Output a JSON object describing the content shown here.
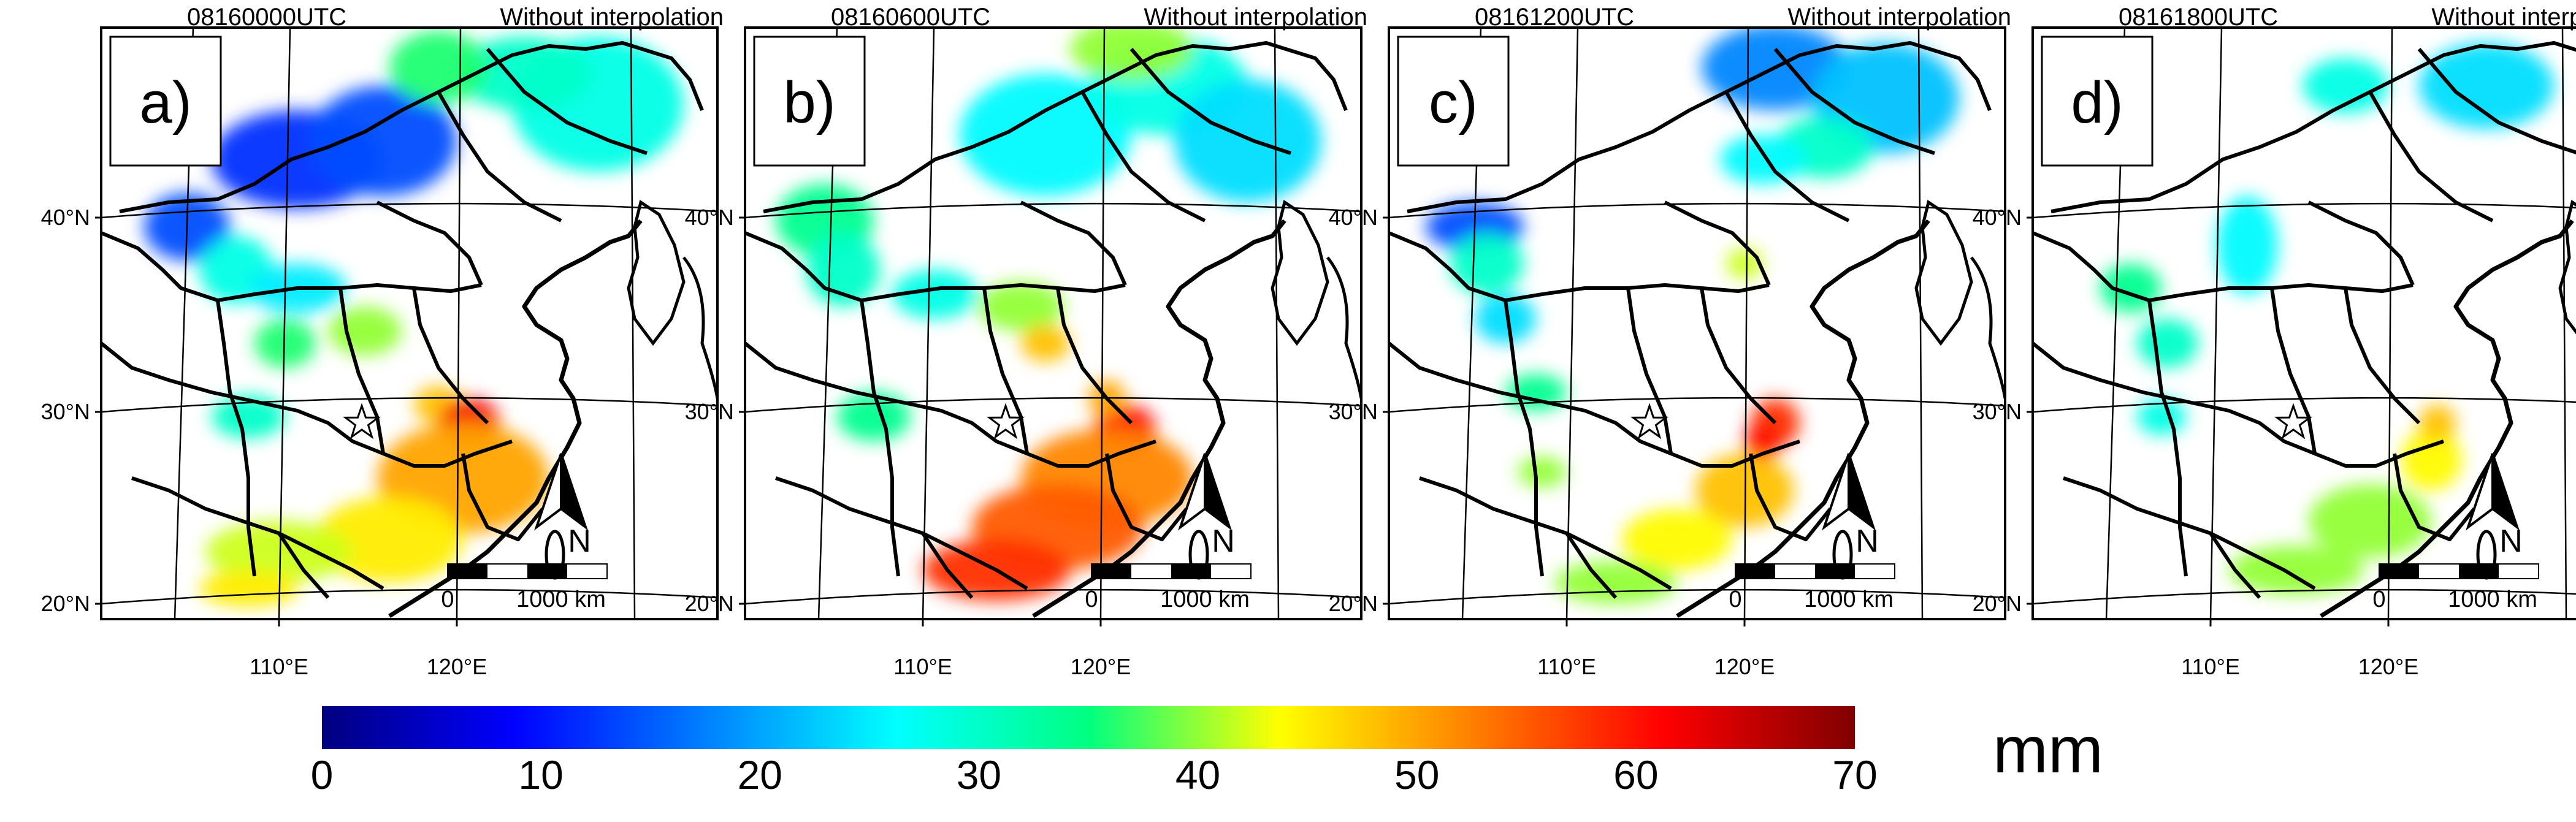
{
  "panels": [
    {
      "label": "a)",
      "time": "08160000UTC",
      "note": "Without interpolation"
    },
    {
      "label": "b)",
      "time": "08160600UTC",
      "note": "Without interpolation"
    },
    {
      "label": "c)",
      "time": "08161200UTC",
      "note": "Without interpolation"
    },
    {
      "label": "d)",
      "time": "08161800UTC",
      "note": "Without interpolation"
    }
  ],
  "lat_labels": [
    "40°N",
    "30°N",
    "20°N"
  ],
  "lon_labels": [
    "110°E",
    "120°E"
  ],
  "north_arrow": "N",
  "scale_bar": {
    "start": "0",
    "end": "1000 km"
  },
  "colorbar": {
    "ticks": [
      "0",
      "10",
      "20",
      "30",
      "40",
      "50",
      "60",
      "70"
    ],
    "min": 0,
    "max": 70,
    "colors": [
      "#000080",
      "#0000ff",
      "#0080ff",
      "#00ffff",
      "#00ff80",
      "#ffff00",
      "#ff8000",
      "#ff0000",
      "#800000"
    ],
    "unit": "mm"
  }
}
